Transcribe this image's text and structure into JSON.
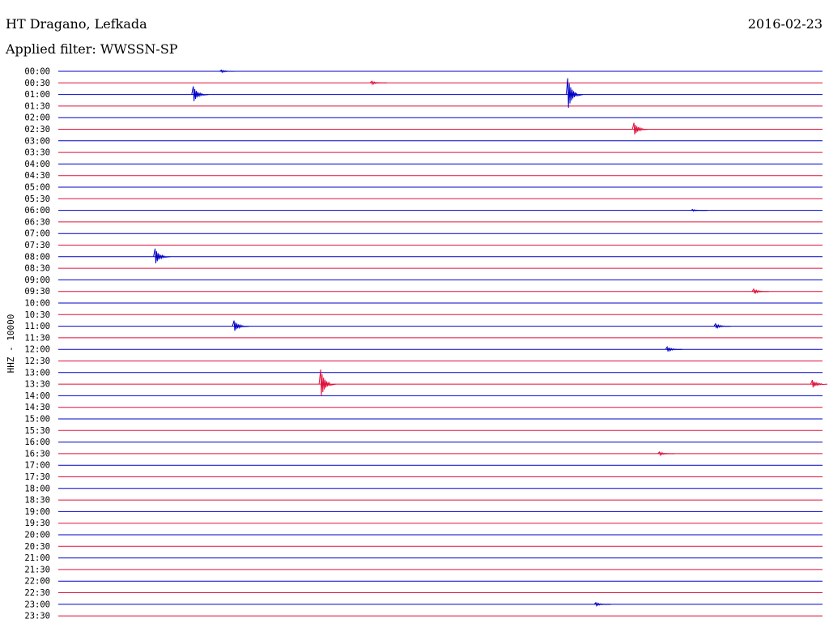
{
  "header": {
    "station": "HT Dragano, Lefkada",
    "date": "2016-02-23",
    "filter": "Applied filter: WWSSN-SP"
  },
  "chart_data": {
    "type": "helicorder",
    "ylabel": "HHZ - 10000",
    "trace_colors": [
      "#0000c8",
      "#e0103c"
    ],
    "row_labels": [
      "00:00",
      "00:30",
      "01:00",
      "01:30",
      "02:00",
      "02:30",
      "03:00",
      "03:30",
      "04:00",
      "04:30",
      "05:00",
      "05:30",
      "06:00",
      "06:30",
      "07:00",
      "07:30",
      "08:00",
      "08:30",
      "09:00",
      "09:30",
      "10:00",
      "10:30",
      "11:00",
      "11:30",
      "12:00",
      "12:30",
      "13:00",
      "13:30",
      "14:00",
      "14:30",
      "15:00",
      "15:30",
      "16:00",
      "16:30",
      "17:00",
      "17:30",
      "18:00",
      "18:30",
      "19:00",
      "19:30",
      "20:00",
      "20:30",
      "21:00",
      "21:30",
      "22:00",
      "22:30",
      "23:00",
      "23:30"
    ],
    "time_range_per_row_minutes": [
      0,
      30
    ],
    "events": [
      {
        "row": "01:00",
        "minute": 5.3,
        "amplitude": 10
      },
      {
        "row": "01:00",
        "minute": 20.0,
        "amplitude": 20
      },
      {
        "row": "02:30",
        "minute": 22.6,
        "amplitude": 8
      },
      {
        "row": "08:00",
        "minute": 3.8,
        "amplitude": 10
      },
      {
        "row": "11:00",
        "minute": 6.9,
        "amplitude": 7
      },
      {
        "row": "11:00",
        "minute": 25.8,
        "amplitude": 3
      },
      {
        "row": "12:00",
        "minute": 23.9,
        "amplitude": 3
      },
      {
        "row": "13:30",
        "minute": 10.3,
        "amplitude": 18
      },
      {
        "row": "13:30",
        "minute": 29.6,
        "amplitude": 5
      },
      {
        "row": "09:30",
        "minute": 27.3,
        "amplitude": 3
      },
      {
        "row": "16:30",
        "minute": 23.6,
        "amplitude": 2
      },
      {
        "row": "23:00",
        "minute": 21.1,
        "amplitude": 2
      },
      {
        "row": "06:00",
        "minute": 24.9,
        "amplitude": 1
      },
      {
        "row": "00:00",
        "minute": 6.4,
        "amplitude": 1.5
      },
      {
        "row": "00:30",
        "minute": 12.3,
        "amplitude": 2
      }
    ]
  }
}
